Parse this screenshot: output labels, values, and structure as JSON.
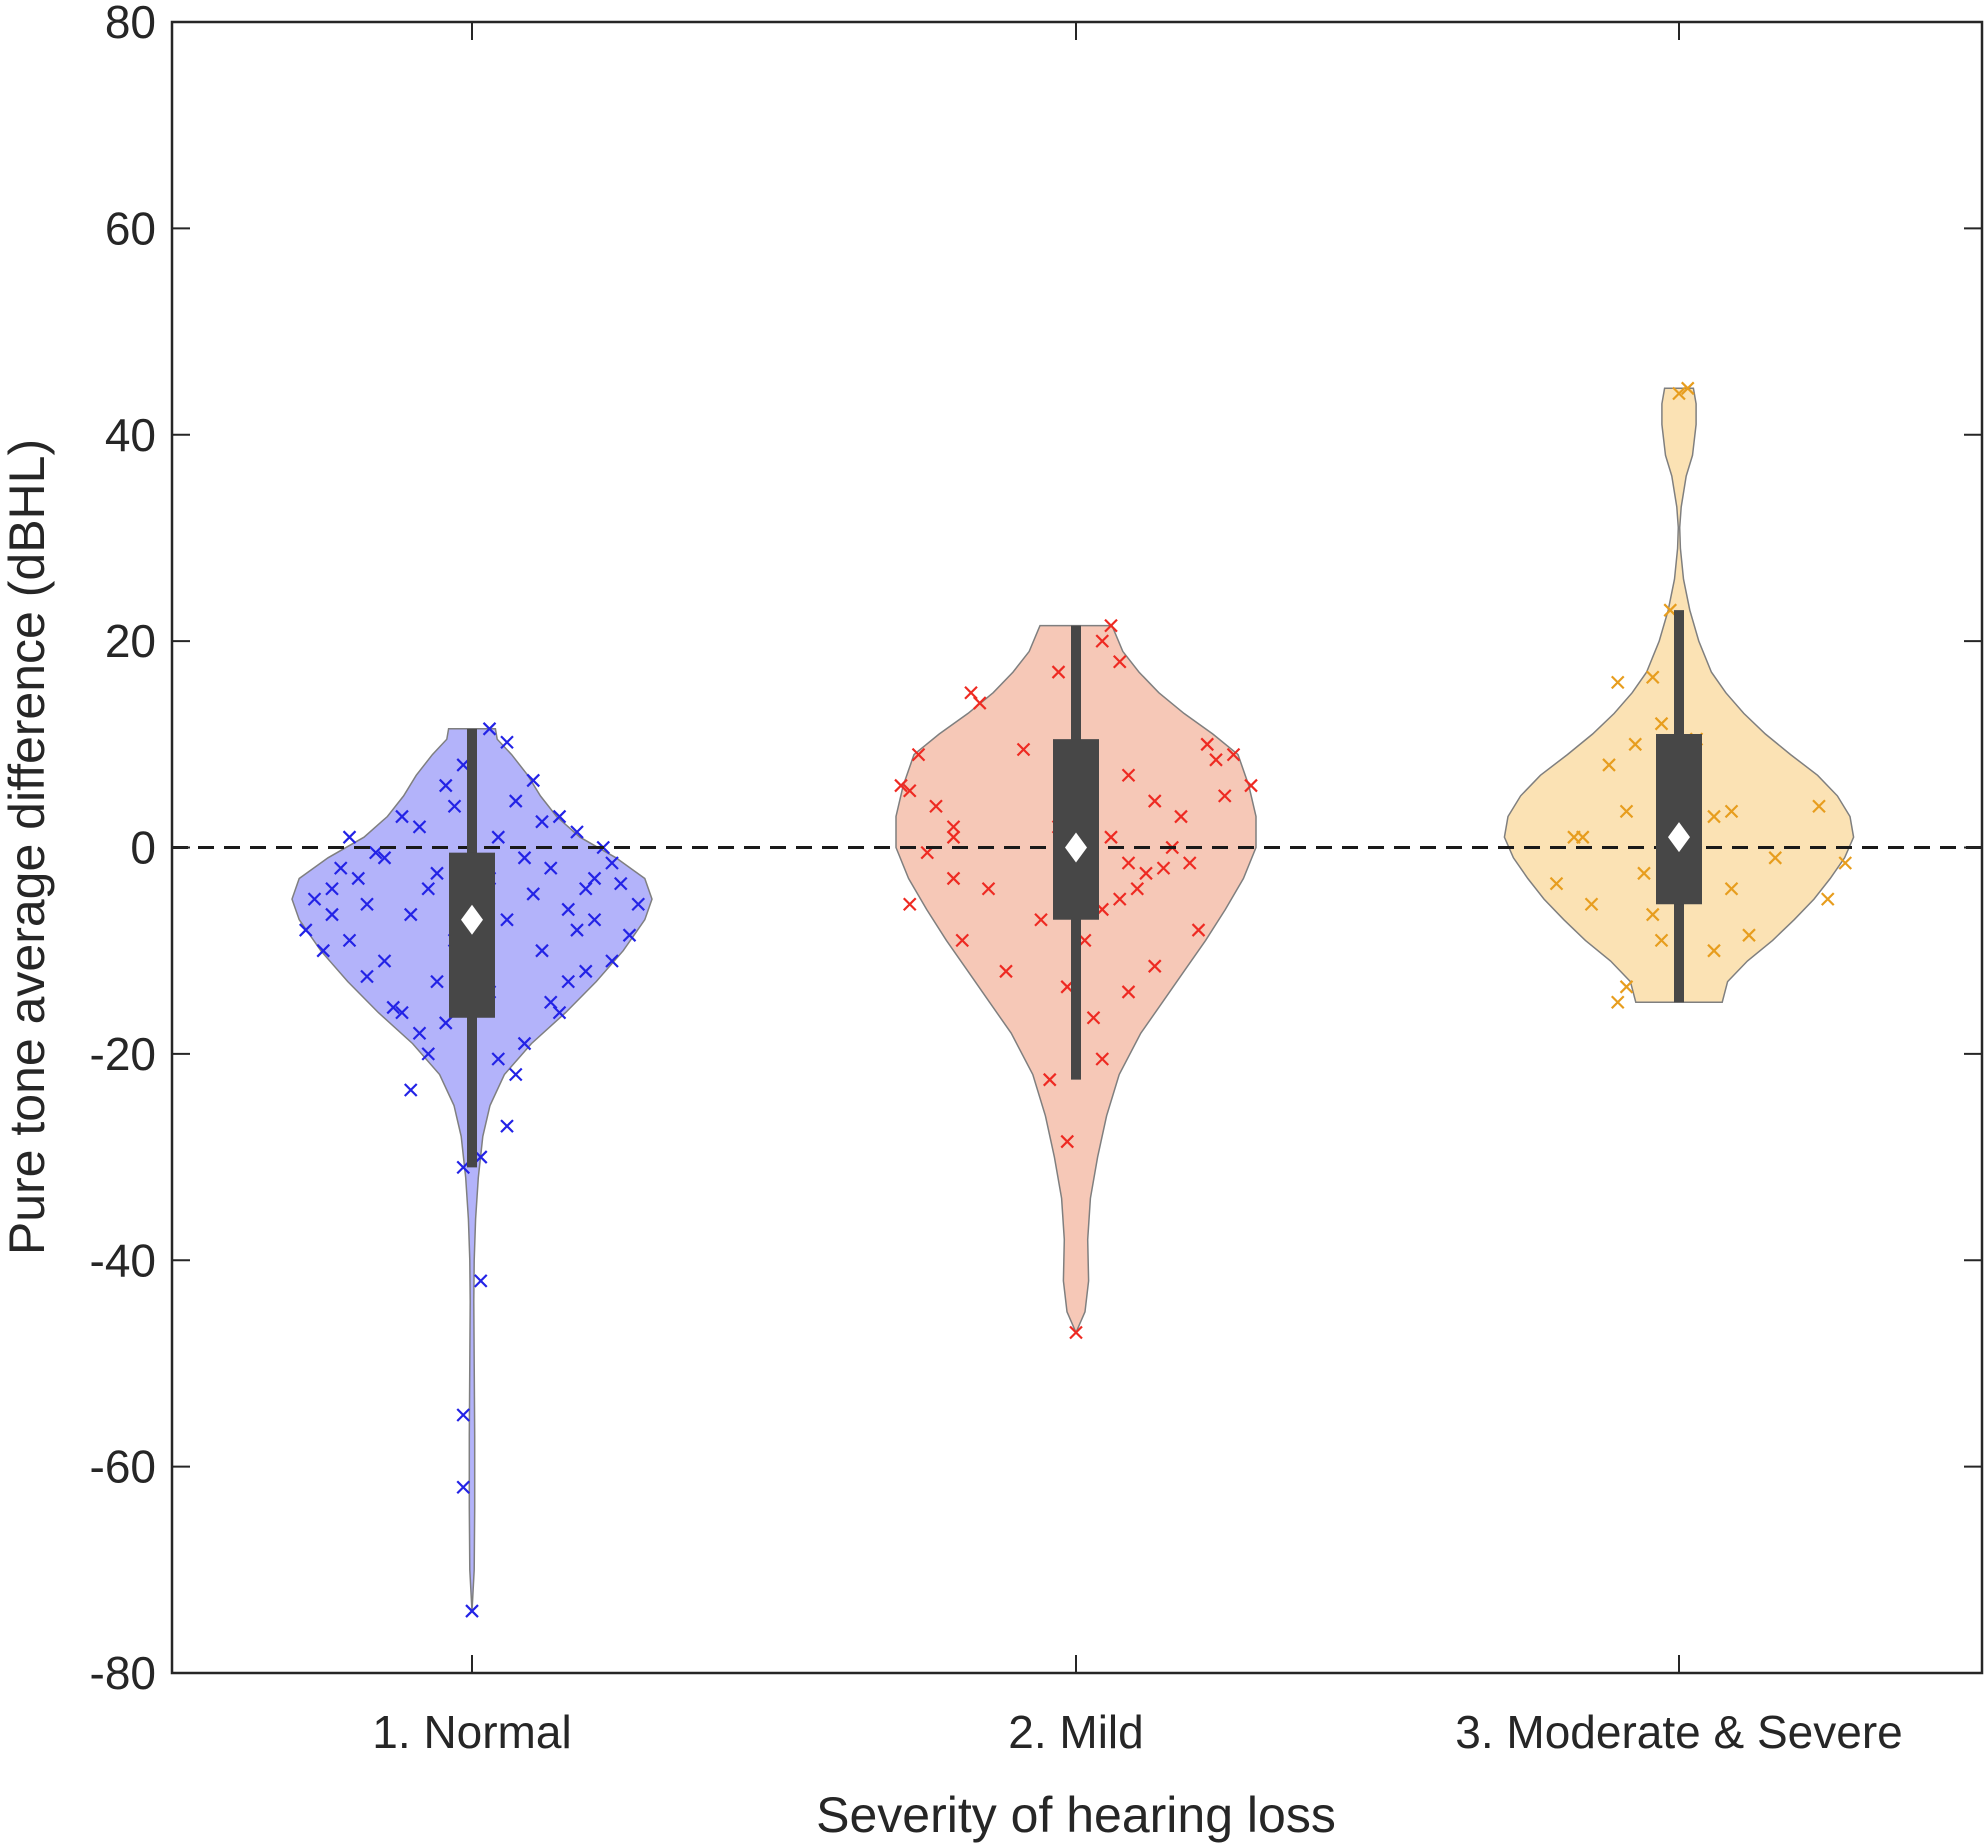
{
  "chart_data": {
    "type": "violin",
    "xlabel": "Severity of hearing loss",
    "ylabel": "Pure tone average difference (dBHL)",
    "ylim": [
      -80,
      80
    ],
    "yticks": [
      "80",
      "60",
      "40",
      "20",
      "0",
      "-20",
      "-40",
      "-60",
      "-80"
    ],
    "reference_line": 0,
    "grid": false,
    "categories": [
      "1. Normal",
      "2. Mild",
      "3. Moderate & Severe"
    ],
    "colors": {
      "violin_fill": [
        "#b3b3fa",
        "#f6c8b7",
        "#fbe2b4"
      ],
      "marker": [
        "#2323e6",
        "#ee2a22",
        "#e79d1e"
      ],
      "violin_edge": "#7f7f7f",
      "box": "#474747",
      "mean": "#ffffff",
      "axes": "#262626"
    },
    "series": [
      {
        "box": {
          "q1": -16.5,
          "median": -7,
          "q3": -0.5,
          "whisker_low": -31,
          "whisker_high": 11.5
        },
        "mean": -7,
        "density": [
          [
            -74,
            0.0
          ],
          [
            -70,
            0.012
          ],
          [
            -64,
            0.015
          ],
          [
            -57,
            0.015
          ],
          [
            -50,
            0.012
          ],
          [
            -44,
            0.01
          ],
          [
            -40,
            0.012
          ],
          [
            -36,
            0.02
          ],
          [
            -32,
            0.035
          ],
          [
            -28,
            0.06
          ],
          [
            -25,
            0.1
          ],
          [
            -22,
            0.18
          ],
          [
            -19,
            0.33
          ],
          [
            -16,
            0.52
          ],
          [
            -13,
            0.69
          ],
          [
            -10,
            0.84
          ],
          [
            -7,
            0.96
          ],
          [
            -5,
            1.0
          ],
          [
            -3,
            0.96
          ],
          [
            -1,
            0.8
          ],
          [
            1,
            0.6
          ],
          [
            3,
            0.47
          ],
          [
            5,
            0.38
          ],
          [
            7,
            0.31
          ],
          [
            9,
            0.22
          ],
          [
            10.5,
            0.14
          ],
          [
            11.5,
            0.13
          ]
        ],
        "points": [
          [
            0.1,
            11.5
          ],
          [
            -0.05,
            8.0
          ],
          [
            0.2,
            10.2
          ],
          [
            0.35,
            6.5
          ],
          [
            -0.3,
            2.0
          ],
          [
            -0.1,
            4.0
          ],
          [
            0.15,
            1.0
          ],
          [
            0.5,
            3.0
          ],
          [
            0.6,
            1.5
          ],
          [
            0.75,
            0.0
          ],
          [
            -0.4,
            3.0
          ],
          [
            -0.55,
            -0.5
          ],
          [
            0.3,
            -1.0
          ],
          [
            0.45,
            -2.0
          ],
          [
            0.7,
            -3.0
          ],
          [
            0.85,
            -3.5
          ],
          [
            -0.2,
            -2.5
          ],
          [
            -0.65,
            -3.0
          ],
          [
            -0.8,
            -4.0
          ],
          [
            -0.9,
            -5.0
          ],
          [
            -0.95,
            -8.0
          ],
          [
            0.95,
            -5.5
          ],
          [
            0.55,
            -6.0
          ],
          [
            0.2,
            -7.0
          ],
          [
            -0.35,
            -6.5
          ],
          [
            -0.7,
            -9.0
          ],
          [
            -0.5,
            -11.0
          ],
          [
            0.4,
            -10.0
          ],
          [
            0.65,
            -12.0
          ],
          [
            -0.2,
            -13.0
          ],
          [
            0.1,
            -14.0
          ],
          [
            -0.45,
            -15.5
          ],
          [
            0.5,
            -16.0
          ],
          [
            -0.15,
            -17.0
          ],
          [
            0.3,
            -19.0
          ],
          [
            -0.25,
            -20.0
          ],
          [
            0.15,
            -20.5
          ],
          [
            -0.35,
            -23.5
          ],
          [
            0.2,
            -27.0
          ],
          [
            0.05,
            -30.0
          ],
          [
            -0.05,
            -31.0
          ],
          [
            0.05,
            -42.0
          ],
          [
            -0.05,
            -55.0
          ],
          [
            -0.05,
            -62.0
          ],
          [
            0.0,
            -74.0
          ],
          [
            0.6,
            -8.0
          ],
          [
            -0.6,
            -12.5
          ],
          [
            0.8,
            -11.0
          ],
          [
            -0.85,
            -10.0
          ],
          [
            0.25,
            4.5
          ],
          [
            -0.7,
            1.0
          ],
          [
            0.35,
            -4.5
          ],
          [
            -0.1,
            -9.0
          ],
          [
            -0.3,
            -18.0
          ],
          [
            0.45,
            -15.0
          ],
          [
            0.7,
            -7.0
          ],
          [
            -0.8,
            -6.5
          ],
          [
            0.1,
            -3.0
          ],
          [
            -0.5,
            -1.0
          ],
          [
            0.9,
            -8.5
          ],
          [
            -0.15,
            6.0
          ],
          [
            0.55,
            -13.0
          ],
          [
            -0.4,
            -16.0
          ],
          [
            0.25,
            -22.0
          ],
          [
            -0.6,
            -5.5
          ],
          [
            0.8,
            -1.5
          ],
          [
            -0.25,
            -4.0
          ],
          [
            0.4,
            2.5
          ],
          [
            -0.75,
            -2.0
          ],
          [
            0.65,
            -4.0
          ]
        ]
      },
      {
        "box": {
          "q1": -7,
          "median": 0,
          "q3": 10.5,
          "whisker_low": -22.5,
          "whisker_high": 21.5
        },
        "mean": 0,
        "density": [
          [
            -47,
            0.0
          ],
          [
            -45,
            0.05
          ],
          [
            -42,
            0.07
          ],
          [
            -38,
            0.065
          ],
          [
            -34,
            0.08
          ],
          [
            -30,
            0.12
          ],
          [
            -26,
            0.17
          ],
          [
            -22,
            0.24
          ],
          [
            -18,
            0.36
          ],
          [
            -15,
            0.48
          ],
          [
            -12,
            0.6
          ],
          [
            -9,
            0.72
          ],
          [
            -6,
            0.83
          ],
          [
            -3,
            0.93
          ],
          [
            0,
            1.0
          ],
          [
            3,
            1.0
          ],
          [
            6,
            0.96
          ],
          [
            9,
            0.9
          ],
          [
            11,
            0.76
          ],
          [
            13,
            0.6
          ],
          [
            15,
            0.46
          ],
          [
            17,
            0.35
          ],
          [
            19,
            0.26
          ],
          [
            21.5,
            0.2
          ]
        ],
        "points": [
          [
            0.2,
            21.5
          ],
          [
            0.15,
            20.0
          ],
          [
            -0.1,
            17.0
          ],
          [
            0.25,
            18.0
          ],
          [
            -0.6,
            15.0
          ],
          [
            -0.55,
            14.0
          ],
          [
            0.75,
            10.0
          ],
          [
            -0.9,
            9.0
          ],
          [
            -0.3,
            9.5
          ],
          [
            0.9,
            9.0
          ],
          [
            0.8,
            8.5
          ],
          [
            -1.0,
            6.0
          ],
          [
            -0.95,
            5.5
          ],
          [
            1.0,
            6.0
          ],
          [
            0.3,
            7.0
          ],
          [
            0.85,
            5.0
          ],
          [
            0.45,
            4.5
          ],
          [
            -0.7,
            2.0
          ],
          [
            -0.7,
            1.0
          ],
          [
            -0.1,
            2.0
          ],
          [
            0.2,
            1.0
          ],
          [
            0.55,
            0.0
          ],
          [
            -0.85,
            -0.5
          ],
          [
            0.3,
            -1.5
          ],
          [
            0.5,
            -2.0
          ],
          [
            0.4,
            -2.5
          ],
          [
            -0.7,
            -3.0
          ],
          [
            0.65,
            -1.5
          ],
          [
            -0.95,
            -5.5
          ],
          [
            0.35,
            -4.0
          ],
          [
            0.25,
            -5.0
          ],
          [
            0.15,
            -6.0
          ],
          [
            -0.2,
            -7.0
          ],
          [
            0.45,
            -11.5
          ],
          [
            -0.65,
            -9.0
          ],
          [
            -0.4,
            -12.0
          ],
          [
            0.3,
            -14.0
          ],
          [
            -0.05,
            -13.5
          ],
          [
            0.1,
            -16.5
          ],
          [
            0.15,
            -20.5
          ],
          [
            -0.15,
            -22.5
          ],
          [
            -0.05,
            -28.5
          ],
          [
            0.0,
            -47.0
          ],
          [
            -0.8,
            4.0
          ],
          [
            0.6,
            3.0
          ],
          [
            0.05,
            -9.0
          ],
          [
            -0.5,
            -4.0
          ],
          [
            0.7,
            -8.0
          ]
        ]
      },
      {
        "box": {
          "q1": -5.5,
          "median": 1,
          "q3": 11,
          "whisker_low": -15,
          "whisker_high": 23
        },
        "mean": 1,
        "density": [
          [
            -15,
            0.24
          ],
          [
            -13,
            0.27
          ],
          [
            -11,
            0.38
          ],
          [
            -9,
            0.52
          ],
          [
            -7,
            0.64
          ],
          [
            -5,
            0.75
          ],
          [
            -3,
            0.84
          ],
          [
            -1,
            0.92
          ],
          [
            1,
            0.97
          ],
          [
            3,
            0.95
          ],
          [
            5,
            0.88
          ],
          [
            7,
            0.77
          ],
          [
            9,
            0.62
          ],
          [
            11,
            0.48
          ],
          [
            13,
            0.36
          ],
          [
            15,
            0.26
          ],
          [
            17,
            0.18
          ],
          [
            20,
            0.11
          ],
          [
            23,
            0.06
          ],
          [
            26,
            0.025
          ],
          [
            29,
            0.008
          ],
          [
            31,
            0.004
          ],
          [
            33,
            0.012
          ],
          [
            36,
            0.04
          ],
          [
            38,
            0.075
          ],
          [
            41,
            0.095
          ],
          [
            43,
            0.095
          ],
          [
            44.5,
            0.08
          ]
        ],
        "points": [
          [
            0.05,
            44.5
          ],
          [
            0.0,
            44.0
          ],
          [
            -0.05,
            23.0
          ],
          [
            -0.35,
            16.0
          ],
          [
            -0.15,
            16.5
          ],
          [
            -0.1,
            12.0
          ],
          [
            0.05,
            10.0
          ],
          [
            0.1,
            10.5
          ],
          [
            -0.25,
            10.0
          ],
          [
            -0.4,
            8.0
          ],
          [
            -0.05,
            7.5
          ],
          [
            0.3,
            3.5
          ],
          [
            0.2,
            3.0
          ],
          [
            -0.3,
            3.5
          ],
          [
            -0.6,
            1.0
          ],
          [
            -0.55,
            1.0
          ],
          [
            0.8,
            4.0
          ],
          [
            0.55,
            -1.0
          ],
          [
            0.95,
            -1.5
          ],
          [
            -0.2,
            -2.5
          ],
          [
            -0.7,
            -3.5
          ],
          [
            0.3,
            -4.0
          ],
          [
            -0.5,
            -5.5
          ],
          [
            0.85,
            -5.0
          ],
          [
            -0.15,
            -6.5
          ],
          [
            0.4,
            -8.5
          ],
          [
            -0.1,
            -9.0
          ],
          [
            0.2,
            -10.0
          ],
          [
            -0.3,
            -13.5
          ],
          [
            -0.35,
            -15.0
          ]
        ]
      }
    ]
  }
}
